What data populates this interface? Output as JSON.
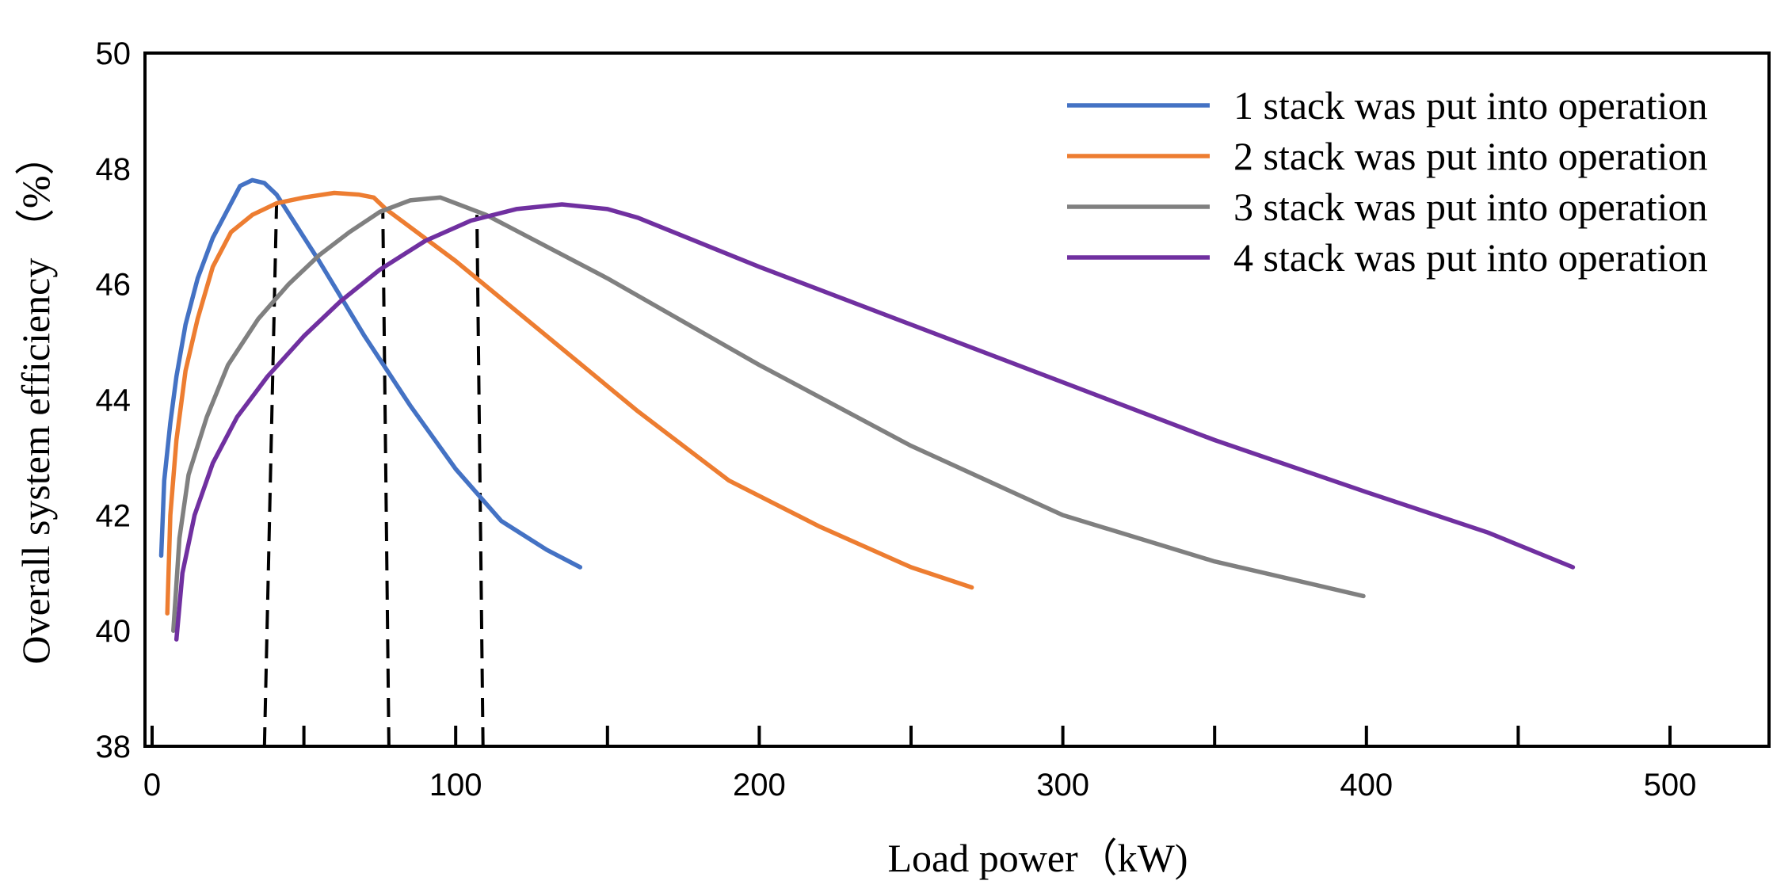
{
  "chart_data": {
    "type": "line",
    "title": "",
    "xlabel": "Load power（kW)",
    "ylabel": "Overall system efficiency （%）",
    "xlim": [
      0,
      532
    ],
    "ylim": [
      38,
      50
    ],
    "xticks": [
      0,
      100,
      200,
      300,
      400,
      500
    ],
    "xminor_ticks": [
      50,
      150,
      250,
      350,
      450
    ],
    "yticks": [
      38,
      40,
      42,
      44,
      46,
      48,
      50
    ],
    "grid": false,
    "legend_position": "top-right",
    "series": [
      {
        "name": "1 stack was put into operation",
        "color": "#4472C4",
        "points": [
          [
            3,
            41.3
          ],
          [
            4,
            42.6
          ],
          [
            6,
            43.6
          ],
          [
            8,
            44.4
          ],
          [
            11,
            45.3
          ],
          [
            15,
            46.1
          ],
          [
            20,
            46.8
          ],
          [
            25,
            47.3
          ],
          [
            29,
            47.7
          ],
          [
            33,
            47.8
          ],
          [
            37,
            47.75
          ],
          [
            41,
            47.55
          ],
          [
            55,
            46.4
          ],
          [
            70,
            45.1
          ],
          [
            85,
            43.9
          ],
          [
            100,
            42.8
          ],
          [
            115,
            41.9
          ],
          [
            130,
            41.4
          ],
          [
            141,
            41.1
          ]
        ]
      },
      {
        "name": "2 stack was put into operation",
        "color": "#ED7D31",
        "points": [
          [
            5,
            40.3
          ],
          [
            6,
            42.0
          ],
          [
            8,
            43.3
          ],
          [
            11,
            44.5
          ],
          [
            15,
            45.4
          ],
          [
            20,
            46.3
          ],
          [
            26,
            46.9
          ],
          [
            33,
            47.2
          ],
          [
            41,
            47.4
          ],
          [
            50,
            47.5
          ],
          [
            60,
            47.58
          ],
          [
            68,
            47.55
          ],
          [
            73,
            47.5
          ],
          [
            77,
            47.3
          ],
          [
            100,
            46.4
          ],
          [
            130,
            45.1
          ],
          [
            160,
            43.8
          ],
          [
            190,
            42.6
          ],
          [
            220,
            41.8
          ],
          [
            250,
            41.1
          ],
          [
            270,
            40.75
          ]
        ]
      },
      {
        "name": "3 stack was put into operation",
        "color": "#808080",
        "points": [
          [
            7,
            40.0
          ],
          [
            9,
            41.6
          ],
          [
            12,
            42.7
          ],
          [
            18,
            43.7
          ],
          [
            25,
            44.6
          ],
          [
            35,
            45.4
          ],
          [
            45,
            46.0
          ],
          [
            55,
            46.5
          ],
          [
            65,
            46.9
          ],
          [
            75,
            47.25
          ],
          [
            85,
            47.45
          ],
          [
            95,
            47.5
          ],
          [
            110,
            47.2
          ],
          [
            150,
            46.1
          ],
          [
            200,
            44.6
          ],
          [
            250,
            43.2
          ],
          [
            300,
            42.0
          ],
          [
            350,
            41.2
          ],
          [
            399,
            40.6
          ]
        ]
      },
      {
        "name": "4 stack was put into operation",
        "color": "#7030A0",
        "points": [
          [
            8,
            39.85
          ],
          [
            10,
            41.0
          ],
          [
            14,
            42.0
          ],
          [
            20,
            42.9
          ],
          [
            28,
            43.7
          ],
          [
            38,
            44.4
          ],
          [
            50,
            45.1
          ],
          [
            62,
            45.7
          ],
          [
            75,
            46.25
          ],
          [
            90,
            46.75
          ],
          [
            105,
            47.1
          ],
          [
            120,
            47.3
          ],
          [
            135,
            47.38
          ],
          [
            150,
            47.3
          ],
          [
            160,
            47.15
          ],
          [
            200,
            46.3
          ],
          [
            250,
            45.3
          ],
          [
            300,
            44.3
          ],
          [
            350,
            43.3
          ],
          [
            400,
            42.4
          ],
          [
            440,
            41.7
          ],
          [
            468,
            41.1
          ]
        ]
      }
    ],
    "reference_lines": [
      {
        "name": "switch-1-2",
        "points": [
          [
            37,
            38
          ],
          [
            41,
            47.4
          ]
        ]
      },
      {
        "name": "switch-2-3",
        "points": [
          [
            78,
            38
          ],
          [
            76,
            47.3
          ]
        ]
      },
      {
        "name": "switch-3-4",
        "points": [
          [
            109,
            38
          ],
          [
            107,
            47.2
          ]
        ]
      }
    ]
  }
}
